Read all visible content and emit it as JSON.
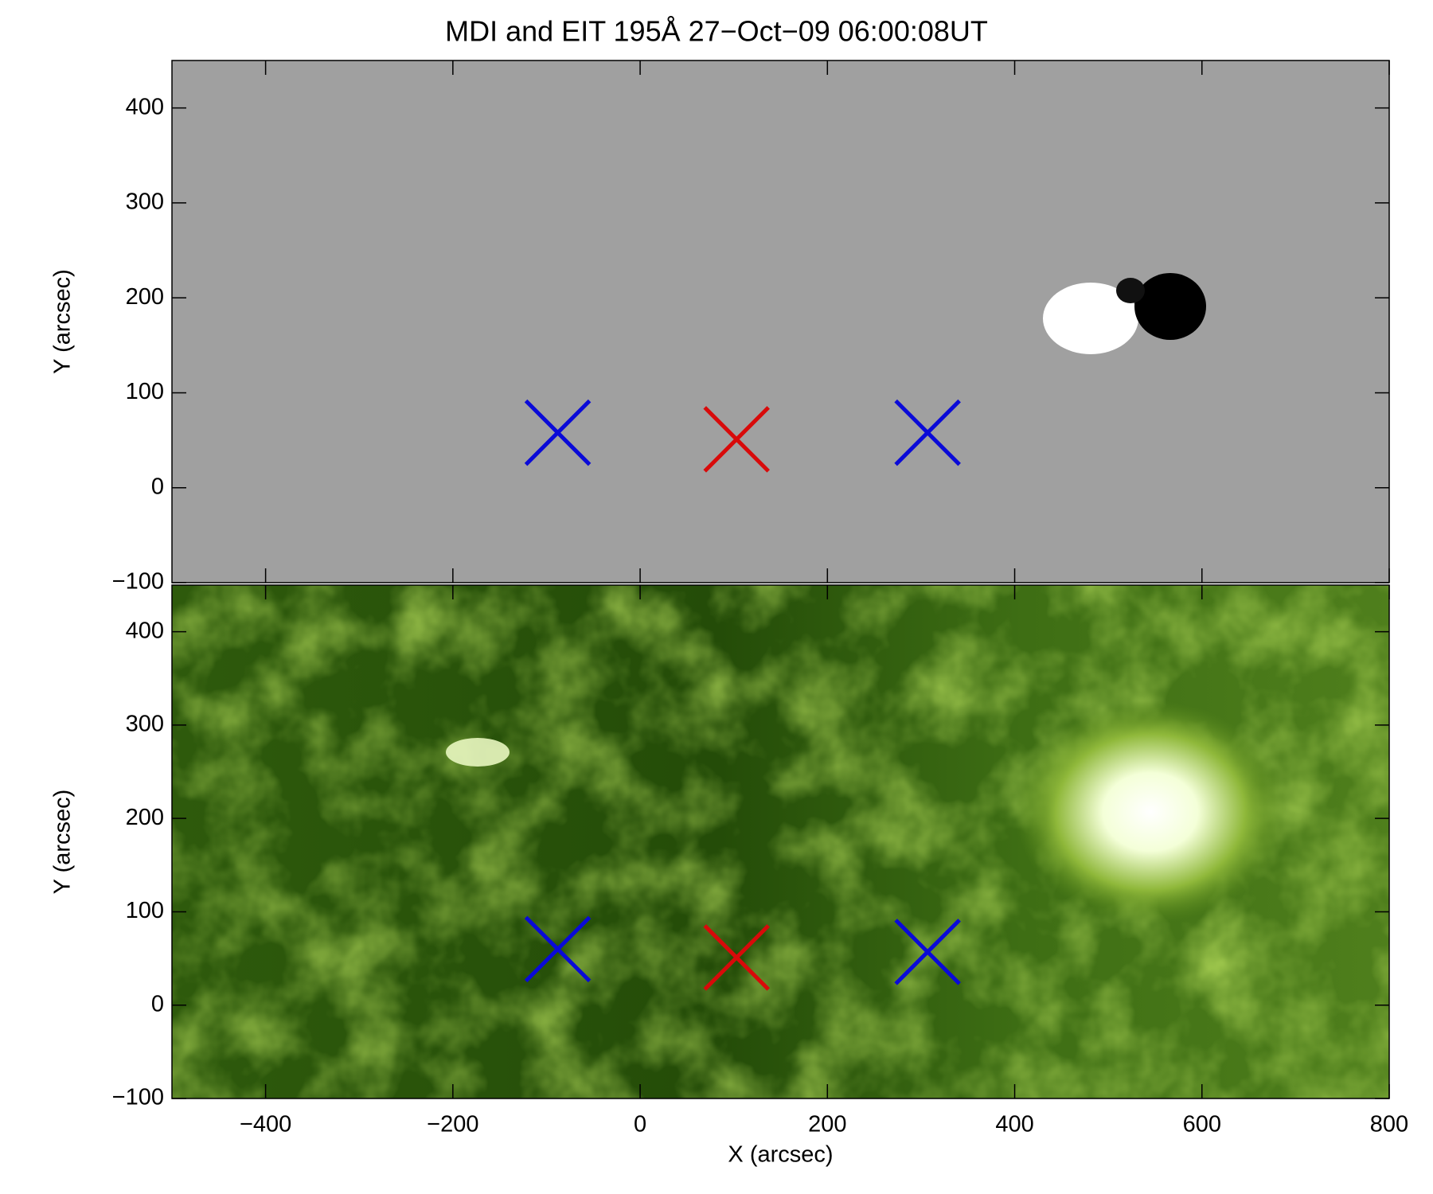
{
  "chart_data": [
    {
      "type": "scatter",
      "title": "MDI and EIT 195Å 27−Oct−09 06:00:08UT",
      "ylabel": "Y (arcsec)",
      "xlim": [
        -500,
        800
      ],
      "ylim": [
        -100,
        450
      ],
      "yticks": [
        {
          "value": -100,
          "label": "−100"
        },
        0,
        100,
        200,
        300,
        400
      ],
      "marker": "x",
      "series": [
        {
          "color": "#0a0ad8",
          "x": [
            -88,
            307
          ],
          "values": [
            58,
            58
          ]
        },
        {
          "color": "#d80a0a",
          "x": [
            103
          ],
          "values": [
            51
          ]
        }
      ]
    },
    {
      "type": "scatter",
      "xlabel": "X (arcsec)",
      "ylabel": "Y (arcsec)",
      "xlim": [
        -500,
        800
      ],
      "ylim": [
        -100,
        450
      ],
      "xticks": [
        {
          "value": -400,
          "label": "−400"
        },
        {
          "value": -200,
          "label": "−200"
        },
        0,
        200,
        400,
        600,
        800
      ],
      "yticks": [
        {
          "value": -100,
          "label": "−100"
        },
        0,
        100,
        200,
        300,
        400
      ],
      "marker": "x",
      "series": [
        {
          "color": "#0a0ad8",
          "x": [
            -88,
            307
          ],
          "values": [
            60,
            57
          ]
        },
        {
          "color": "#d80a0a",
          "x": [
            103
          ],
          "values": [
            51
          ]
        }
      ]
    }
  ]
}
